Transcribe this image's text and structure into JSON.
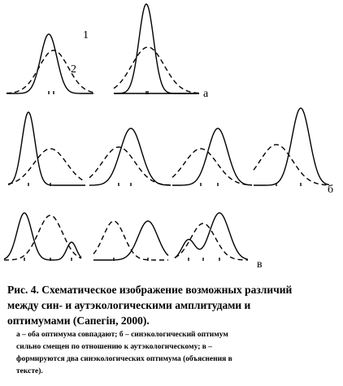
{
  "figure": {
    "labels": {
      "curve_1": "1",
      "curve_2": "2",
      "panel_a": "а",
      "panel_b": "б",
      "panel_c": "в"
    }
  },
  "caption": {
    "title_lines": [
      "Рис. 4. Схематическое изображение возможных различий",
      "между син- и аутэкологическими  амплитудами и",
      "оптимумами (Сапегін, 2000)."
    ],
    "note_lines": [
      "а – оба оптимума совпадают; б – синэкологический оптимум",
      "сильно смещен по отношению к аутэкологическому; в –",
      "формируются два синэкологических  оптимума (объяснения в",
      "тексте)."
    ]
  }
}
